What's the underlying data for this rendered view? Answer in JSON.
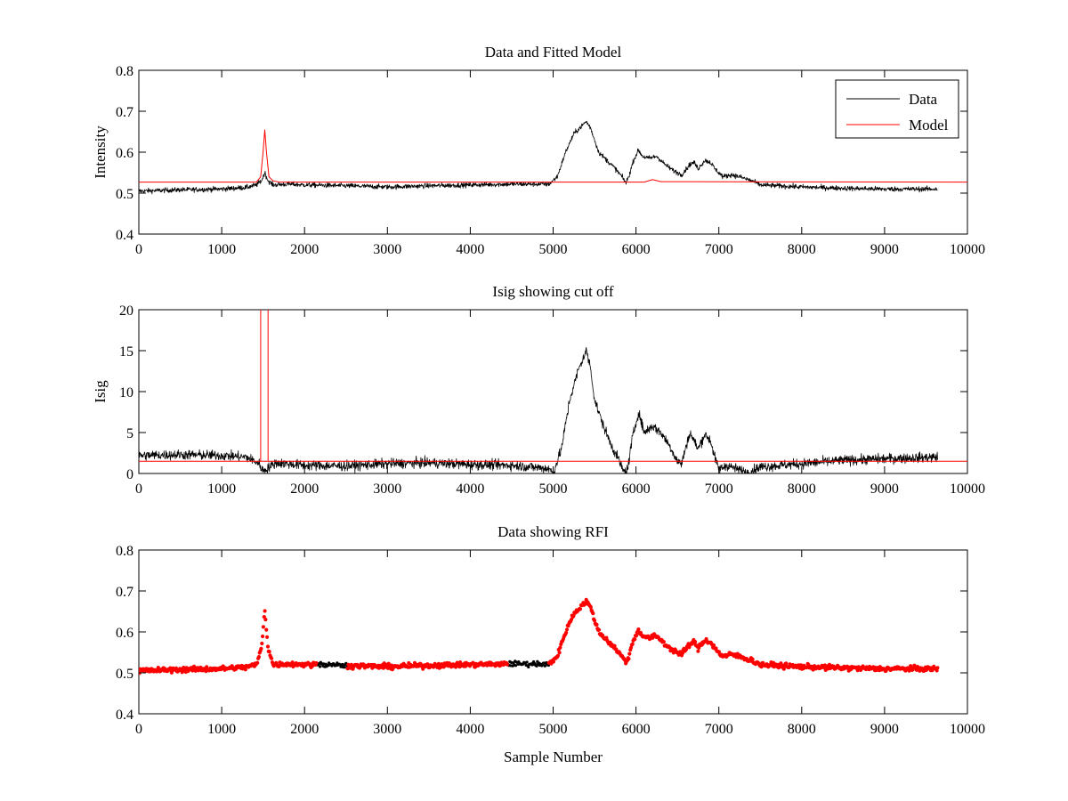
{
  "chart_data": [
    {
      "type": "line",
      "title": "Data and Fitted Model",
      "xlabel": "",
      "ylabel": "Intensity",
      "xlim": [
        0,
        10000
      ],
      "ylim": [
        0.4,
        0.8
      ],
      "xticks": [
        "0",
        "1000",
        "2000",
        "3000",
        "4000",
        "5000",
        "6000",
        "7000",
        "8000",
        "9000",
        "10000"
      ],
      "yticks": [
        "0.4",
        "0.5",
        "0.6",
        "0.7",
        "0.8"
      ],
      "legend": {
        "placement": "top-right",
        "entries": [
          "Data",
          "Model"
        ]
      },
      "series": [
        {
          "name": "Data",
          "color": "#000000",
          "noise": 0.006,
          "points": [
            [
              0,
              0.505
            ],
            [
              500,
              0.508
            ],
            [
              1000,
              0.51
            ],
            [
              1300,
              0.514
            ],
            [
              1420,
              0.52
            ],
            [
              1480,
              0.53
            ],
            [
              1520,
              0.55
            ],
            [
              1560,
              0.53
            ],
            [
              1620,
              0.52
            ],
            [
              1800,
              0.522
            ],
            [
              2000,
              0.52
            ],
            [
              2500,
              0.518
            ],
            [
              3000,
              0.515
            ],
            [
              3500,
              0.518
            ],
            [
              4000,
              0.52
            ],
            [
              4500,
              0.522
            ],
            [
              4950,
              0.522
            ],
            [
              5050,
              0.54
            ],
            [
              5150,
              0.6
            ],
            [
              5250,
              0.645
            ],
            [
              5350,
              0.665
            ],
            [
              5400,
              0.675
            ],
            [
              5450,
              0.66
            ],
            [
              5500,
              0.63
            ],
            [
              5550,
              0.6
            ],
            [
              5650,
              0.58
            ],
            [
              5750,
              0.56
            ],
            [
              5830,
              0.54
            ],
            [
              5880,
              0.525
            ],
            [
              5920,
              0.545
            ],
            [
              5970,
              0.58
            ],
            [
              6030,
              0.605
            ],
            [
              6080,
              0.59
            ],
            [
              6150,
              0.585
            ],
            [
              6250,
              0.59
            ],
            [
              6350,
              0.57
            ],
            [
              6450,
              0.555
            ],
            [
              6550,
              0.545
            ],
            [
              6650,
              0.57
            ],
            [
              6700,
              0.575
            ],
            [
              6750,
              0.56
            ],
            [
              6830,
              0.58
            ],
            [
              6900,
              0.575
            ],
            [
              6950,
              0.56
            ],
            [
              7050,
              0.54
            ],
            [
              7150,
              0.545
            ],
            [
              7250,
              0.54
            ],
            [
              7400,
              0.53
            ],
            [
              7500,
              0.52
            ],
            [
              8000,
              0.515
            ],
            [
              8500,
              0.512
            ],
            [
              9000,
              0.51
            ],
            [
              9640,
              0.51
            ]
          ]
        },
        {
          "name": "Model",
          "color": "#ff0000",
          "noise": 0,
          "points": [
            [
              0,
              0.527
            ],
            [
              1420,
              0.527
            ],
            [
              1470,
              0.54
            ],
            [
              1500,
              0.6
            ],
            [
              1520,
              0.655
            ],
            [
              1540,
              0.6
            ],
            [
              1570,
              0.54
            ],
            [
              1620,
              0.53
            ],
            [
              1700,
              0.527
            ],
            [
              6100,
              0.527
            ],
            [
              6200,
              0.533
            ],
            [
              6300,
              0.528
            ],
            [
              10000,
              0.527
            ]
          ]
        }
      ]
    },
    {
      "type": "line",
      "title": "Isig showing cut off",
      "xlabel": "",
      "ylabel": "Isig",
      "xlim": [
        0,
        10000
      ],
      "ylim": [
        0,
        20
      ],
      "xticks": [
        "0",
        "1000",
        "2000",
        "3000",
        "4000",
        "5000",
        "6000",
        "7000",
        "8000",
        "9000",
        "10000"
      ],
      "yticks": [
        "0",
        "5",
        "10",
        "15",
        "20"
      ],
      "series": [
        {
          "name": "Isig",
          "color": "#000000",
          "noise": 0.6,
          "points": [
            [
              0,
              2.2
            ],
            [
              500,
              2.3
            ],
            [
              1000,
              2.2
            ],
            [
              1300,
              2.0
            ],
            [
              1450,
              1.2
            ],
            [
              1500,
              0.3
            ],
            [
              1550,
              0.6
            ],
            [
              1650,
              1.3
            ],
            [
              2000,
              1.0
            ],
            [
              2500,
              0.9
            ],
            [
              3000,
              1.2
            ],
            [
              3500,
              1.3
            ],
            [
              4000,
              1.1
            ],
            [
              4500,
              1.0
            ],
            [
              4950,
              0.6
            ],
            [
              5000,
              0.0
            ],
            [
              5100,
              3.0
            ],
            [
              5200,
              9.0
            ],
            [
              5300,
              12.5
            ],
            [
              5400,
              15.0
            ],
            [
              5450,
              13.0
            ],
            [
              5500,
              9.0
            ],
            [
              5600,
              6.0
            ],
            [
              5700,
              3.5
            ],
            [
              5800,
              1.5
            ],
            [
              5850,
              0.2
            ],
            [
              5900,
              0.5
            ],
            [
              5950,
              4.0
            ],
            [
              6030,
              7.5
            ],
            [
              6100,
              5.0
            ],
            [
              6200,
              5.8
            ],
            [
              6300,
              5.0
            ],
            [
              6400,
              3.5
            ],
            [
              6500,
              1.5
            ],
            [
              6550,
              1.2
            ],
            [
              6650,
              5.0
            ],
            [
              6700,
              4.0
            ],
            [
              6750,
              3.0
            ],
            [
              6830,
              4.8
            ],
            [
              6900,
              4.0
            ],
            [
              6950,
              2.0
            ],
            [
              7000,
              0.5
            ],
            [
              7100,
              1.0
            ],
            [
              7200,
              0.6
            ],
            [
              7350,
              0.1
            ],
            [
              7500,
              0.8
            ],
            [
              8000,
              1.2
            ],
            [
              8500,
              1.6
            ],
            [
              9000,
              1.8
            ],
            [
              9640,
              2.0
            ]
          ]
        },
        {
          "name": "Cut off",
          "color": "#ff0000",
          "noise": 0,
          "points": [
            [
              0,
              1.5
            ],
            [
              1470,
              1.5
            ],
            [
              1470,
              20
            ],
            [
              1470,
              1.5
            ],
            [
              1560,
              1.5
            ],
            [
              1560,
              20
            ],
            [
              1560,
              1.5
            ],
            [
              10000,
              1.5
            ]
          ]
        }
      ]
    },
    {
      "type": "scatter",
      "title": "Data showing RFI",
      "xlabel": "Sample Number",
      "ylabel": "",
      "xlim": [
        0,
        10000
      ],
      "ylim": [
        0.4,
        0.8
      ],
      "xticks": [
        "0",
        "1000",
        "2000",
        "3000",
        "4000",
        "5000",
        "6000",
        "7000",
        "8000",
        "9000",
        "10000"
      ],
      "yticks": [
        "0.4",
        "0.5",
        "0.6",
        "0.7",
        "0.8"
      ],
      "series": [
        {
          "name": "Data",
          "color": "#000000",
          "noise": 0.006,
          "points": [
            [
              2150,
              0.522
            ],
            [
              2520,
              0.522
            ],
            [
              4450,
              0.522
            ],
            [
              4950,
              0.522
            ]
          ]
        },
        {
          "name": "RFI",
          "color": "#ff0000",
          "noise": 0.006,
          "points": [
            [
              0,
              0.505
            ],
            [
              500,
              0.508
            ],
            [
              1000,
              0.51
            ],
            [
              1300,
              0.514
            ],
            [
              1420,
              0.52
            ],
            [
              1480,
              0.56
            ],
            [
              1520,
              0.655
            ],
            [
              1560,
              0.56
            ],
            [
              1620,
              0.52
            ],
            [
              1800,
              0.522
            ],
            [
              2000,
              0.52
            ],
            [
              2200,
              0.52
            ],
            [
              2500,
              0.518
            ],
            [
              3000,
              0.515
            ],
            [
              3500,
              0.518
            ],
            [
              4000,
              0.52
            ],
            [
              4500,
              0.522
            ],
            [
              4950,
              0.522
            ],
            [
              5050,
              0.54
            ],
            [
              5150,
              0.6
            ],
            [
              5250,
              0.645
            ],
            [
              5350,
              0.665
            ],
            [
              5400,
              0.675
            ],
            [
              5450,
              0.66
            ],
            [
              5500,
              0.63
            ],
            [
              5550,
              0.6
            ],
            [
              5650,
              0.58
            ],
            [
              5750,
              0.56
            ],
            [
              5830,
              0.54
            ],
            [
              5880,
              0.525
            ],
            [
              5920,
              0.545
            ],
            [
              5970,
              0.58
            ],
            [
              6030,
              0.605
            ],
            [
              6080,
              0.59
            ],
            [
              6150,
              0.585
            ],
            [
              6250,
              0.59
            ],
            [
              6350,
              0.57
            ],
            [
              6450,
              0.555
            ],
            [
              6550,
              0.545
            ],
            [
              6650,
              0.57
            ],
            [
              6700,
              0.575
            ],
            [
              6750,
              0.56
            ],
            [
              6830,
              0.58
            ],
            [
              6900,
              0.575
            ],
            [
              6950,
              0.56
            ],
            [
              7050,
              0.54
            ],
            [
              7150,
              0.545
            ],
            [
              7250,
              0.54
            ],
            [
              7400,
              0.53
            ],
            [
              7500,
              0.52
            ],
            [
              8000,
              0.515
            ],
            [
              8500,
              0.512
            ],
            [
              9000,
              0.51
            ],
            [
              9640,
              0.51
            ]
          ],
          "gaps": [
            [
              2150,
              2520
            ],
            [
              4450,
              4950
            ]
          ]
        }
      ]
    }
  ]
}
